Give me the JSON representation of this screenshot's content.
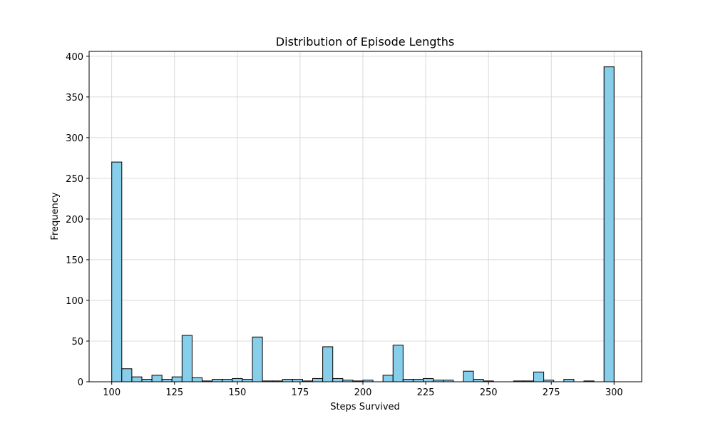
{
  "chart_data": {
    "type": "bar",
    "title": "Distribution of Episode Lengths",
    "xlabel": "Steps Survived",
    "ylabel": "Frequency",
    "xlim": [
      91,
      311
    ],
    "ylim": [
      0,
      406
    ],
    "x_ticks": [
      100,
      125,
      150,
      175,
      200,
      225,
      250,
      275,
      300
    ],
    "y_ticks": [
      0,
      50,
      100,
      150,
      200,
      250,
      300,
      350,
      400
    ],
    "grid": true,
    "bar_color": "#87ceeb",
    "edge_color": "#000000",
    "bin_edges": [
      100,
      104,
      108,
      112,
      116,
      120,
      124,
      128,
      132,
      136,
      140,
      144,
      148,
      152,
      156,
      160,
      164,
      168,
      172,
      176,
      180,
      184,
      188,
      192,
      196,
      200,
      204,
      208,
      212,
      216,
      220,
      224,
      228,
      232,
      236,
      240,
      244,
      248,
      252,
      256,
      260,
      264,
      268,
      272,
      276,
      280,
      284,
      288,
      292,
      296,
      300
    ],
    "values": [
      270,
      16,
      6,
      3,
      8,
      3,
      6,
      57,
      5,
      1,
      3,
      3,
      4,
      3,
      55,
      1,
      1,
      3,
      3,
      1,
      4,
      43,
      4,
      2,
      1,
      2,
      0,
      8,
      45,
      3,
      3,
      4,
      2,
      2,
      0,
      13,
      3,
      1,
      0,
      0,
      1,
      1,
      12,
      2,
      0,
      3,
      0,
      1,
      0,
      387
    ]
  }
}
